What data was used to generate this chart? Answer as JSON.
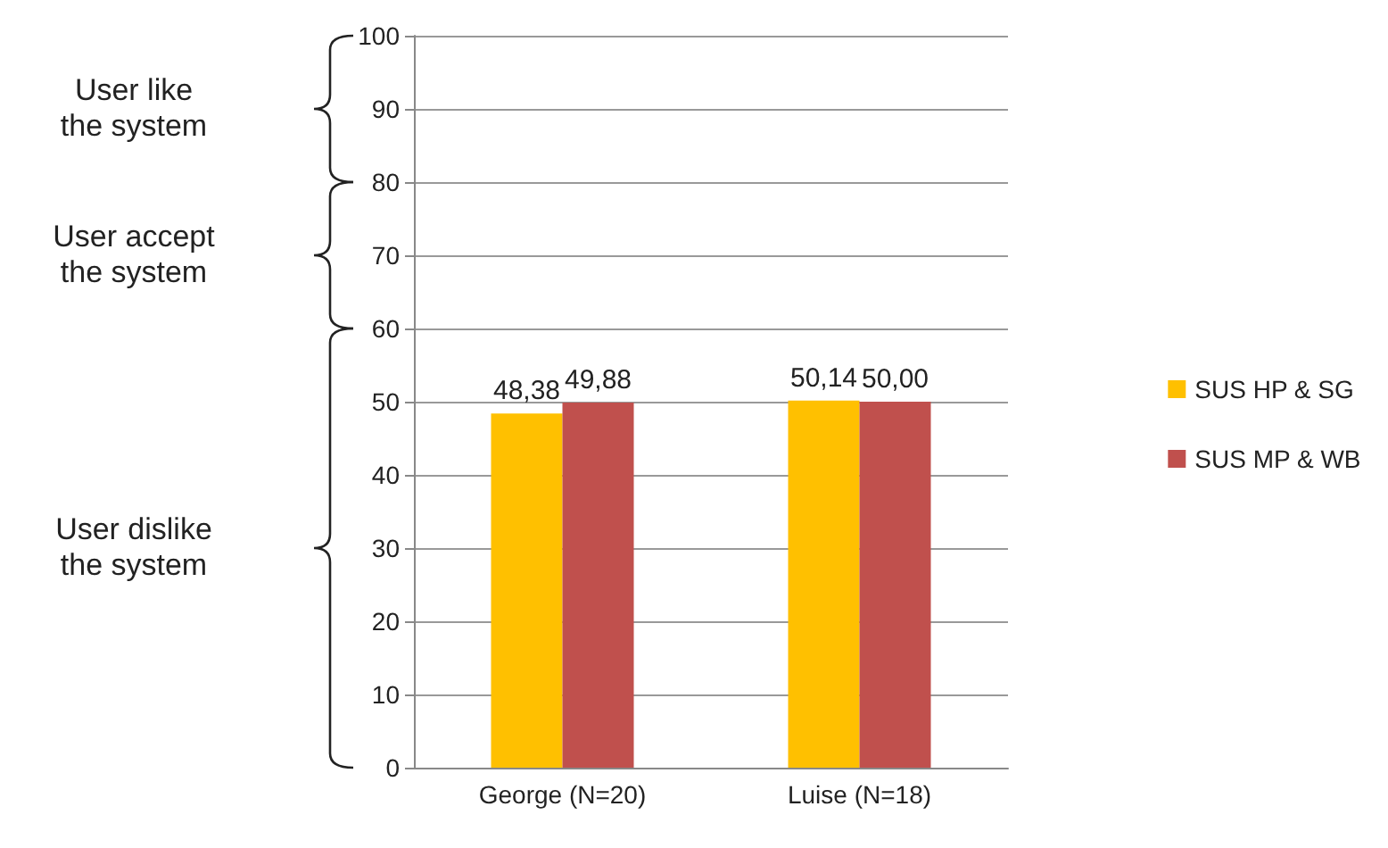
{
  "chart_data": {
    "type": "bar",
    "categories": [
      "George (N=20)",
      "Luise (N=18)"
    ],
    "series": [
      {
        "name": "SUS HP & SG",
        "color": "#ffc000",
        "values": [
          48.38,
          50.14
        ],
        "value_labels": [
          "48,38",
          "50,14"
        ]
      },
      {
        "name": "SUS MP & WB",
        "color": "#c0504d",
        "values": [
          49.88,
          50.0
        ],
        "value_labels": [
          "49,88",
          "50,00"
        ]
      }
    ],
    "ylim": [
      0,
      100
    ],
    "yticks": [
      0,
      10,
      20,
      30,
      40,
      50,
      60,
      70,
      80,
      90,
      100
    ],
    "grid": "y",
    "legend": "right",
    "annotations": [
      "User like\nthe system",
      "User accept\nthe system",
      "User dislike\nthe system"
    ]
  }
}
